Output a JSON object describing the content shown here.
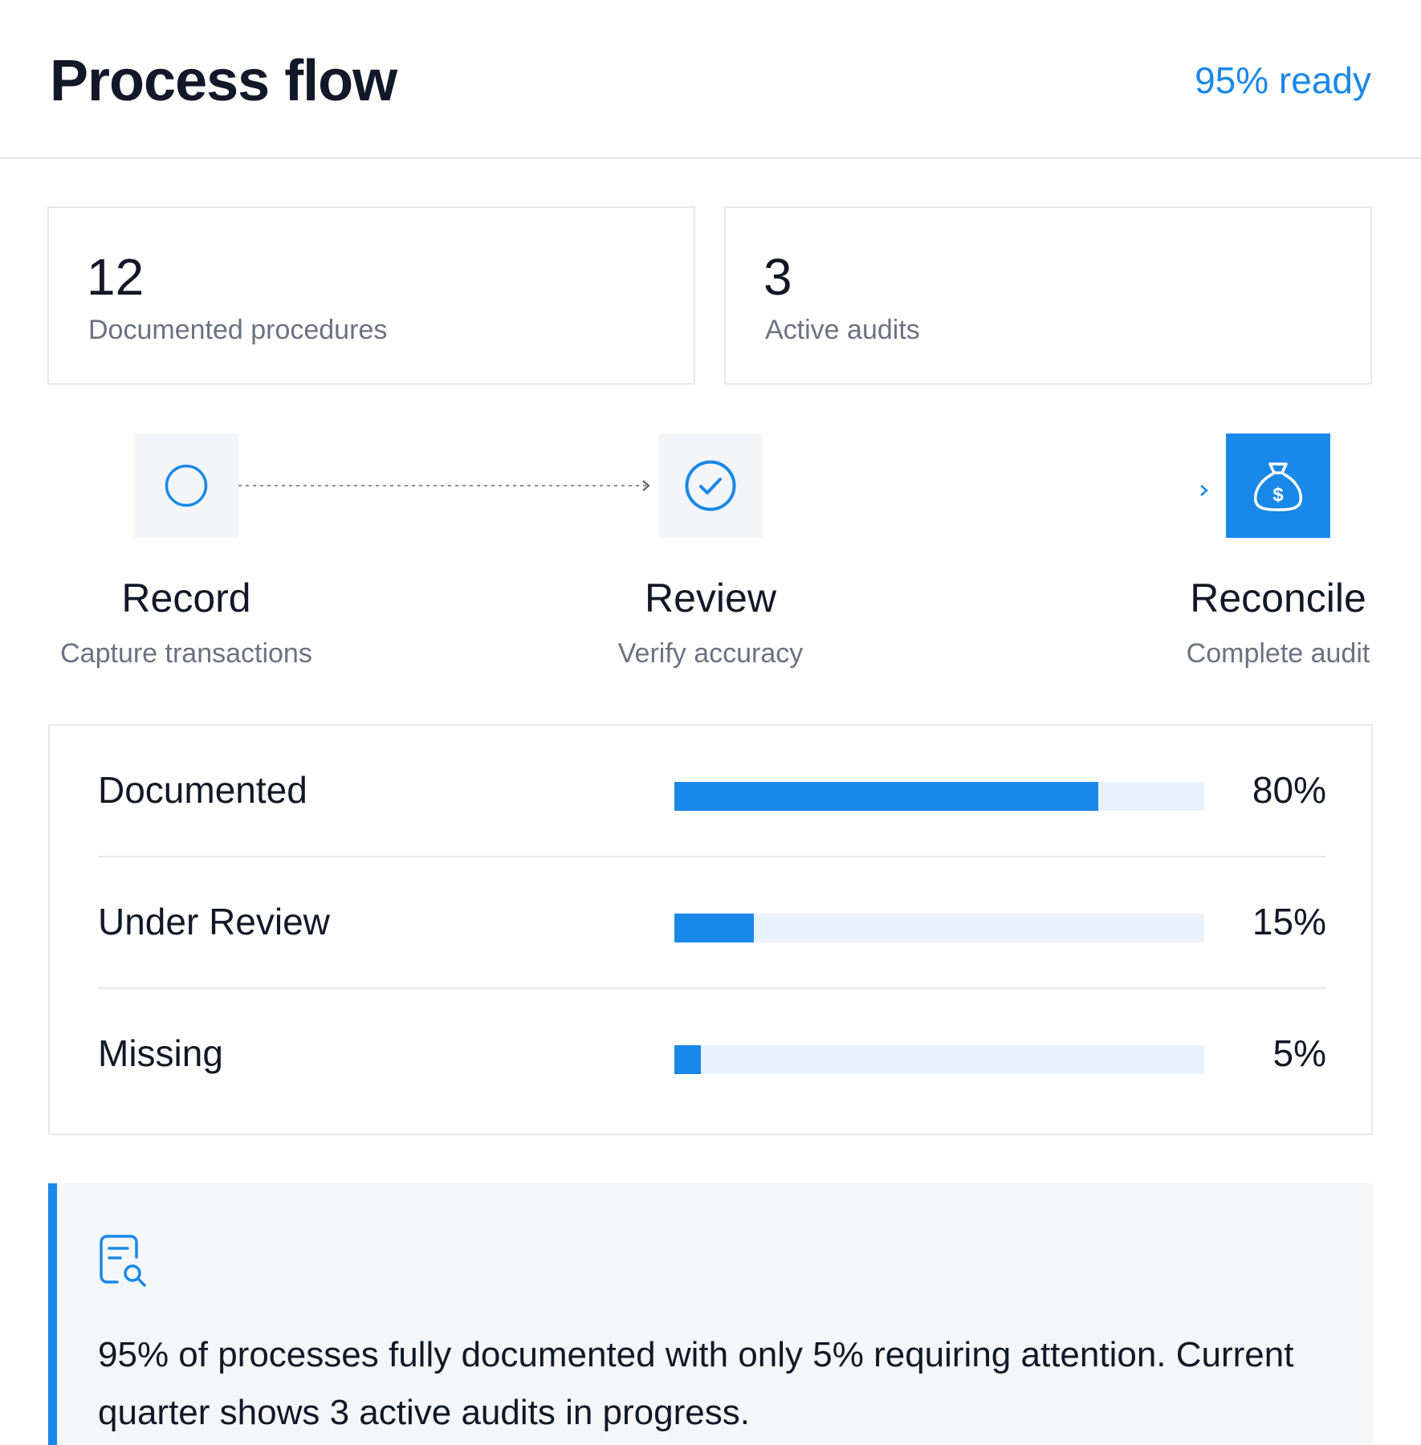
{
  "header": {
    "title": "Process flow",
    "status": "95% ready"
  },
  "stats": [
    {
      "value": "12",
      "label": "Documented procedures"
    },
    {
      "value": "3",
      "label": "Active audits"
    }
  ],
  "steps": [
    {
      "title": "Record",
      "subtitle": "Capture transactions",
      "icon": "circle-icon",
      "state": "pending"
    },
    {
      "title": "Review",
      "subtitle": "Verify accuracy",
      "icon": "check-circle-icon",
      "state": "done"
    },
    {
      "title": "Reconcile",
      "subtitle": "Complete audit",
      "icon": "money-bag-icon",
      "state": "active"
    }
  ],
  "progress": [
    {
      "label": "Documented",
      "value": "80%",
      "fraction": 0.8
    },
    {
      "label": "Under Review",
      "value": "15%",
      "fraction": 0.15
    },
    {
      "label": "Missing",
      "value": "5%",
      "fraction": 0.05
    }
  ],
  "callout": {
    "icon": "document-search-icon",
    "text": "95% of processes fully documented with only 5% requiring attention. Current quarter shows 3 active audits in progress."
  },
  "colors": {
    "accent": "#1a88e8",
    "track": "#e8f2fc",
    "muted": "#6b7280",
    "panel": "#f5f6f9"
  }
}
